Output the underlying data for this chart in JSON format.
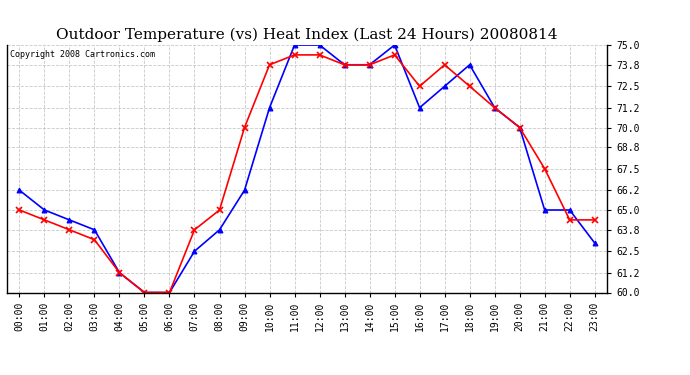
{
  "title": "Outdoor Temperature (vs) Heat Index (Last 24 Hours) 20080814",
  "copyright": "Copyright 2008 Cartronics.com",
  "hours": [
    "00:00",
    "01:00",
    "02:00",
    "03:00",
    "04:00",
    "05:00",
    "06:00",
    "07:00",
    "08:00",
    "09:00",
    "10:00",
    "11:00",
    "12:00",
    "13:00",
    "14:00",
    "15:00",
    "16:00",
    "17:00",
    "18:00",
    "19:00",
    "20:00",
    "21:00",
    "22:00",
    "23:00"
  ],
  "temp_blue": [
    66.2,
    65.0,
    64.4,
    63.8,
    61.2,
    60.0,
    60.0,
    62.5,
    63.8,
    66.2,
    71.2,
    75.0,
    75.0,
    73.8,
    73.8,
    75.0,
    71.2,
    72.5,
    73.8,
    71.2,
    70.0,
    65.0,
    65.0,
    63.0
  ],
  "heat_red": [
    65.0,
    64.4,
    63.8,
    63.2,
    61.2,
    60.0,
    60.0,
    63.8,
    65.0,
    70.0,
    73.8,
    74.4,
    74.4,
    73.8,
    73.8,
    74.4,
    72.5,
    73.8,
    72.5,
    71.2,
    70.0,
    67.5,
    64.4,
    64.4
  ],
  "ylim": [
    60.0,
    75.0
  ],
  "yticks": [
    60.0,
    61.2,
    62.5,
    63.8,
    65.0,
    66.2,
    67.5,
    68.8,
    70.0,
    71.2,
    72.5,
    73.8,
    75.0
  ],
  "blue_color": "#0000ff",
  "red_color": "#ff0000",
  "bg_color": "#ffffff",
  "grid_color": "#bbbbbb",
  "title_fontsize": 11,
  "copyright_fontsize": 6,
  "tick_fontsize": 7
}
